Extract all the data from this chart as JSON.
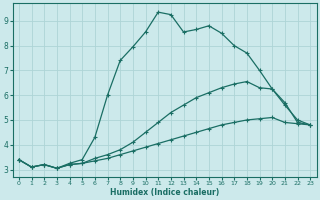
{
  "title": "",
  "xlabel": "Humidex (Indice chaleur)",
  "bg_color": "#cce9eb",
  "grid_color": "#aed4d6",
  "line_color": "#1a6e64",
  "xlim": [
    -0.5,
    23.5
  ],
  "ylim": [
    2.7,
    9.7
  ],
  "xticks": [
    0,
    1,
    2,
    3,
    4,
    5,
    6,
    7,
    8,
    9,
    10,
    11,
    12,
    13,
    14,
    15,
    16,
    17,
    18,
    19,
    20,
    21,
    22,
    23
  ],
  "yticks": [
    3,
    4,
    5,
    6,
    7,
    8,
    9
  ],
  "line1_x": [
    0,
    1,
    2,
    3,
    4,
    5,
    6,
    7,
    8,
    9,
    10,
    11,
    12,
    13,
    14,
    15,
    16,
    17,
    18,
    19,
    20,
    21,
    22,
    23
  ],
  "line1_y": [
    3.4,
    3.1,
    3.2,
    3.05,
    3.2,
    3.25,
    3.35,
    3.45,
    3.6,
    3.75,
    3.9,
    4.05,
    4.2,
    4.35,
    4.5,
    4.65,
    4.8,
    4.9,
    5.0,
    5.05,
    5.1,
    4.9,
    4.85,
    4.8
  ],
  "line2_x": [
    0,
    1,
    2,
    3,
    4,
    5,
    6,
    7,
    8,
    9,
    10,
    11,
    12,
    13,
    14,
    15,
    16,
    17,
    18,
    19,
    20,
    21,
    22,
    23
  ],
  "line2_y": [
    3.4,
    3.1,
    3.2,
    3.05,
    3.2,
    3.25,
    3.45,
    3.6,
    3.8,
    4.1,
    4.5,
    4.9,
    5.3,
    5.6,
    5.9,
    6.1,
    6.3,
    6.45,
    6.55,
    6.3,
    6.25,
    5.6,
    5.0,
    4.8
  ],
  "line3_x": [
    0,
    1,
    2,
    3,
    4,
    5,
    6,
    7,
    8,
    9,
    10,
    11,
    12,
    13,
    14,
    15,
    16,
    17,
    18,
    19,
    20,
    21,
    22,
    23
  ],
  "line3_y": [
    3.4,
    3.1,
    3.2,
    3.05,
    3.25,
    3.4,
    4.3,
    6.0,
    7.4,
    7.95,
    8.55,
    9.35,
    9.25,
    8.55,
    8.65,
    8.8,
    8.5,
    8.0,
    7.7,
    7.0,
    6.25,
    5.7,
    4.9,
    4.8
  ]
}
